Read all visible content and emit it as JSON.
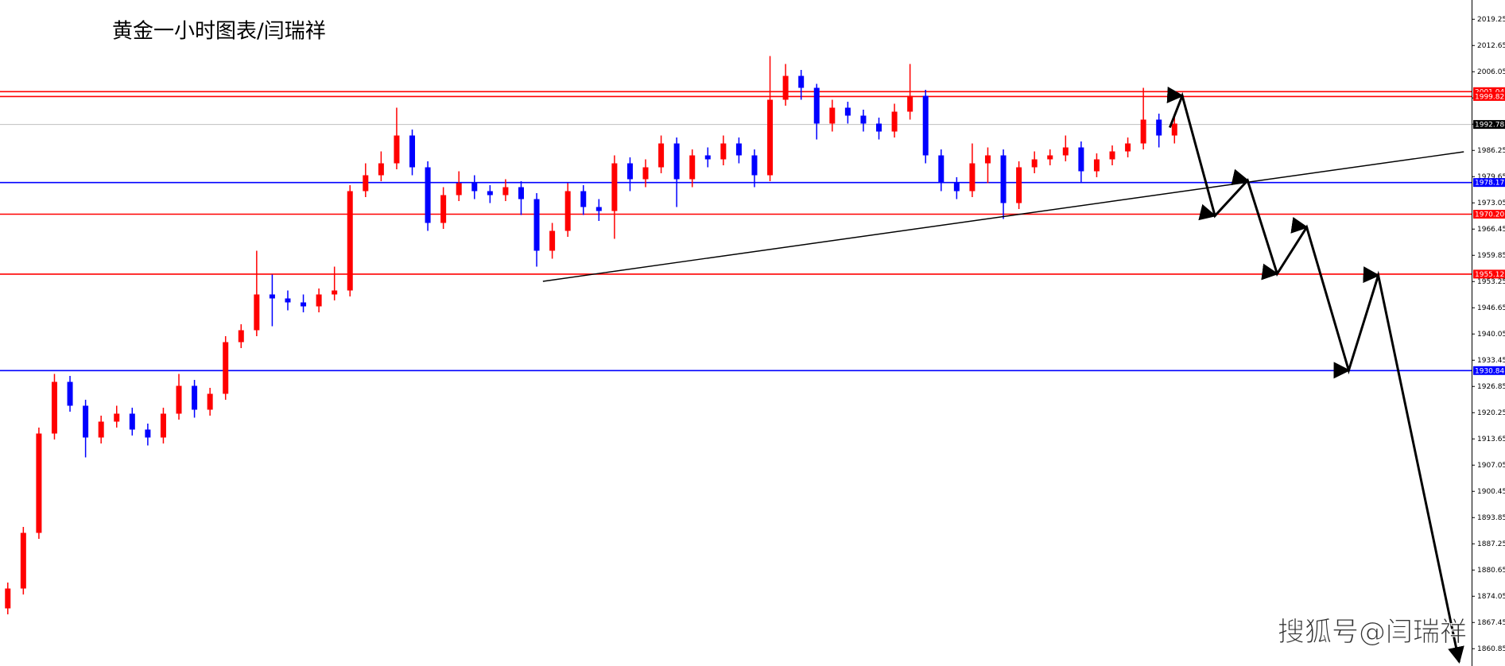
{
  "chart_data": {
    "type": "candlestick",
    "title": "黄金一小时图表/闫瑞祥",
    "watermark": "搜狐号@闫瑞祥",
    "up_color": "#ff0000",
    "down_color": "#0000ff",
    "xlim": [
      -0.5,
      94.1
    ],
    "ylim": [
      1856.5,
      2024.1
    ],
    "yticks": [
      1860.85,
      1867.45,
      1874.05,
      1880.65,
      1887.25,
      1893.85,
      1900.45,
      1907.05,
      1913.65,
      1920.25,
      1926.85,
      1933.45,
      1940.05,
      1946.65,
      1953.25,
      1959.85,
      1966.45,
      1973.05,
      1979.65,
      1986.25,
      1992.85,
      1999.45,
      2006.05,
      2012.65,
      2019.25
    ],
    "x": [
      0,
      1,
      2,
      3,
      4,
      5,
      6,
      7,
      8,
      9,
      10,
      11,
      12,
      13,
      14,
      15,
      16,
      17,
      18,
      19,
      20,
      21,
      22,
      23,
      24,
      25,
      26,
      27,
      28,
      29,
      30,
      31,
      32,
      33,
      34,
      35,
      36,
      37,
      38,
      39,
      40,
      41,
      42,
      43,
      44,
      45,
      46,
      47,
      48,
      49,
      50,
      51,
      52,
      53,
      54,
      55,
      56,
      57,
      58,
      59,
      60,
      61,
      62,
      63,
      64,
      65,
      66,
      67,
      68,
      69,
      70,
      71,
      72,
      73,
      74,
      75
    ],
    "open": [
      1871,
      1876,
      1890,
      1915,
      1928,
      1922,
      1914,
      1918,
      1920,
      1916,
      1914,
      1920,
      1927,
      1921,
      1925,
      1938,
      1941,
      1950,
      1949,
      1948,
      1947,
      1950,
      1951,
      1976,
      1980,
      1983,
      1990,
      1982,
      1968,
      1975,
      1978,
      1976,
      1975,
      1977,
      1974,
      1961,
      1966,
      1976,
      1972,
      1971,
      1983,
      1979,
      1982,
      1988,
      1979,
      1985,
      1984,
      1988,
      1985,
      1980,
      1999,
      2005,
      2002,
      1993,
      1997,
      1995,
      1993,
      1991,
      1996,
      2000,
      1985,
      1978,
      1976,
      1983,
      1985,
      1973,
      1982,
      1984,
      1985,
      1987,
      1981,
      1984,
      1986,
      1988,
      1994,
      1990
    ],
    "high": [
      1877.5,
      1891.5,
      1916.5,
      1930,
      1929.5,
      1923.5,
      1919.5,
      1922,
      1921.5,
      1917.5,
      1921.5,
      1930,
      1928.5,
      1926.5,
      1939.5,
      1942.5,
      1961,
      1955,
      1951,
      1950,
      1951.5,
      1957,
      1977.5,
      1983,
      1986,
      1997,
      1991.5,
      1983.5,
      1977,
      1981,
      1980,
      1977.5,
      1979,
      1978.5,
      1975.5,
      1968,
      1978,
      1977.5,
      1974,
      1985,
      1984.5,
      1984,
      1990,
      1989.5,
      1986.5,
      1987,
      1990,
      1989.5,
      1986.5,
      2010,
      2008,
      2006.5,
      2003,
      1999,
      1998.5,
      1996.5,
      1994.5,
      1998,
      2008,
      2001.5,
      1986.5,
      1979.5,
      1988,
      1987,
      1986.5,
      1983.5,
      1986,
      1986.5,
      1990,
      1988.5,
      1985.5,
      1987.5,
      1989.5,
      2002,
      1995.5,
      1994.5
    ],
    "low": [
      1869.5,
      1874.5,
      1888.5,
      1913.5,
      1920.5,
      1909,
      1912.5,
      1916.5,
      1914.5,
      1912,
      1912.5,
      1918.5,
      1919,
      1919.5,
      1923.5,
      1936.5,
      1939.5,
      1942,
      1946,
      1945.5,
      1945.5,
      1948.5,
      1949.5,
      1974.5,
      1978.5,
      1981.5,
      1980,
      1966,
      1966.5,
      1973.5,
      1974,
      1973,
      1973.5,
      1970,
      1957,
      1959,
      1964.5,
      1970,
      1968.5,
      1964,
      1976,
      1977,
      1980.5,
      1972,
      1977,
      1982,
      1982.5,
      1983,
      1977,
      1978.5,
      1997.5,
      1999,
      1989,
      1991,
      1993,
      1991,
      1989,
      1989.5,
      1994,
      1983,
      1976,
      1974,
      1974.5,
      1978,
      1969,
      1971.5,
      1980.5,
      1982.5,
      1983.5,
      1978,
      1979.5,
      1982.5,
      1984.5,
      1986.5,
      1987,
      1988
    ],
    "close": [
      1876,
      1890,
      1915,
      1928,
      1922,
      1914,
      1918,
      1920,
      1916,
      1914,
      1920,
      1927,
      1921,
      1925,
      1938,
      1941,
      1950,
      1949,
      1948,
      1947,
      1950,
      1951,
      1976,
      1980,
      1983,
      1990,
      1982,
      1968,
      1975,
      1978,
      1976,
      1975,
      1977,
      1974,
      1961,
      1966,
      1976,
      1972,
      1971,
      1983,
      1979,
      1982,
      1988,
      1979,
      1985,
      1984,
      1988,
      1985,
      1980,
      1999,
      2005,
      2002,
      1993,
      1997,
      1995,
      1993,
      1991,
      1996,
      2000,
      1985,
      1978,
      1976,
      1983,
      1985,
      1973,
      1982,
      1984,
      1985,
      1987,
      1981,
      1984,
      1986,
      1988,
      1994,
      1990,
      1993
    ],
    "levels": [
      {
        "value": 2001.04,
        "label": "2001.04",
        "color": "#ff0000"
      },
      {
        "value": 1999.82,
        "label": "1999.82",
        "color": "#ff0000"
      },
      {
        "value": 1992.78,
        "label": "1992.78",
        "color": "#c0c0c0",
        "label_color": "#000000"
      },
      {
        "value": 1978.17,
        "label": "1978.17",
        "color": "#0000ff"
      },
      {
        "value": 1970.2,
        "label": "1970.20",
        "color": "#ff0000"
      },
      {
        "value": 1955.12,
        "label": "1955.12",
        "color": "#ff0000"
      },
      {
        "value": 1930.84,
        "label": "1930.84",
        "color": "#0000ff"
      }
    ],
    "trendline": {
      "x": [
        34.4,
        93.6
      ],
      "y": [
        1953.3,
        1985.9
      ],
      "color": "#000000"
    },
    "projection": {
      "x": [
        74.7,
        75.5,
        77.6,
        79.7,
        81.6,
        83.5,
        86.2,
        88.1,
        93.3
      ],
      "y": [
        1992,
        2000,
        1969.8,
        1978.7,
        1955.2,
        1966.9,
        1930.9,
        1954.8,
        1857.5
      ],
      "color": "#000000"
    }
  }
}
